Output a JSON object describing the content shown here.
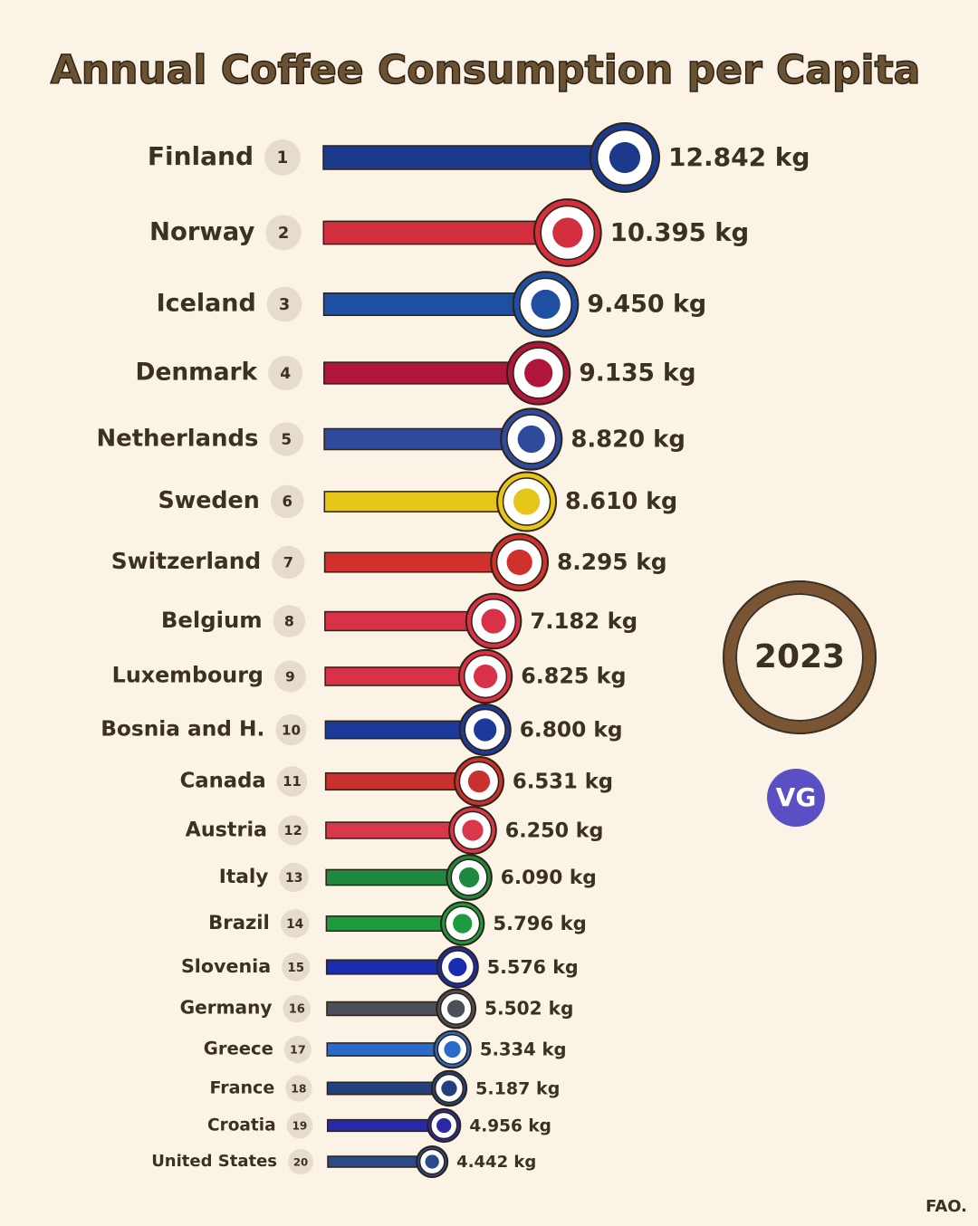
{
  "chart_data": {
    "type": "bar",
    "title": "Annual Coffee Consumption per Capita",
    "categories": [
      "Finland",
      "Norway",
      "Iceland",
      "Denmark",
      "Netherlands",
      "Sweden",
      "Switzerland",
      "Belgium",
      "Luxembourg",
      "Bosnia and H.",
      "Canada",
      "Austria",
      "Italy",
      "Brazil",
      "Slovenia",
      "Germany",
      "Greece",
      "France",
      "Croatia",
      "United States"
    ],
    "ranks": [
      1,
      2,
      3,
      4,
      5,
      6,
      7,
      8,
      9,
      10,
      11,
      12,
      13,
      14,
      15,
      16,
      17,
      18,
      19,
      20
    ],
    "values": [
      12.842,
      10.395,
      9.45,
      9.135,
      8.82,
      8.61,
      8.295,
      7.182,
      6.825,
      6.8,
      6.531,
      6.25,
      6.09,
      5.796,
      5.576,
      5.502,
      5.334,
      5.187,
      4.956,
      4.442
    ],
    "value_labels": [
      "12.842 kg",
      "10.395 kg",
      "9.450 kg",
      "9.135 kg",
      "8.820 kg",
      "8.610 kg",
      "8.295 kg",
      "7.182 kg",
      "6.825 kg",
      "6.800 kg",
      "6.531 kg",
      "6.250 kg",
      "6.090 kg",
      "5.796 kg",
      "5.576 kg",
      "5.502 kg",
      "5.334 kg",
      "5.187 kg",
      "4.956 kg",
      "4.442 kg"
    ],
    "colors": [
      "#1b3a8c",
      "#d32f3f",
      "#1f4fa0",
      "#b0163c",
      "#2f4a9a",
      "#e6c619",
      "#d0312d",
      "#d83148",
      "#d83148",
      "#1b3a99",
      "#c8312d",
      "#d8384a",
      "#1f8a3f",
      "#1e9a3e",
      "#1a2db0",
      "#4a4f5a",
      "#2a6ac8",
      "#23407e",
      "#2a2aa8",
      "#2a4a8a"
    ],
    "year": "2023",
    "logo": "VG",
    "source": "FAO."
  }
}
